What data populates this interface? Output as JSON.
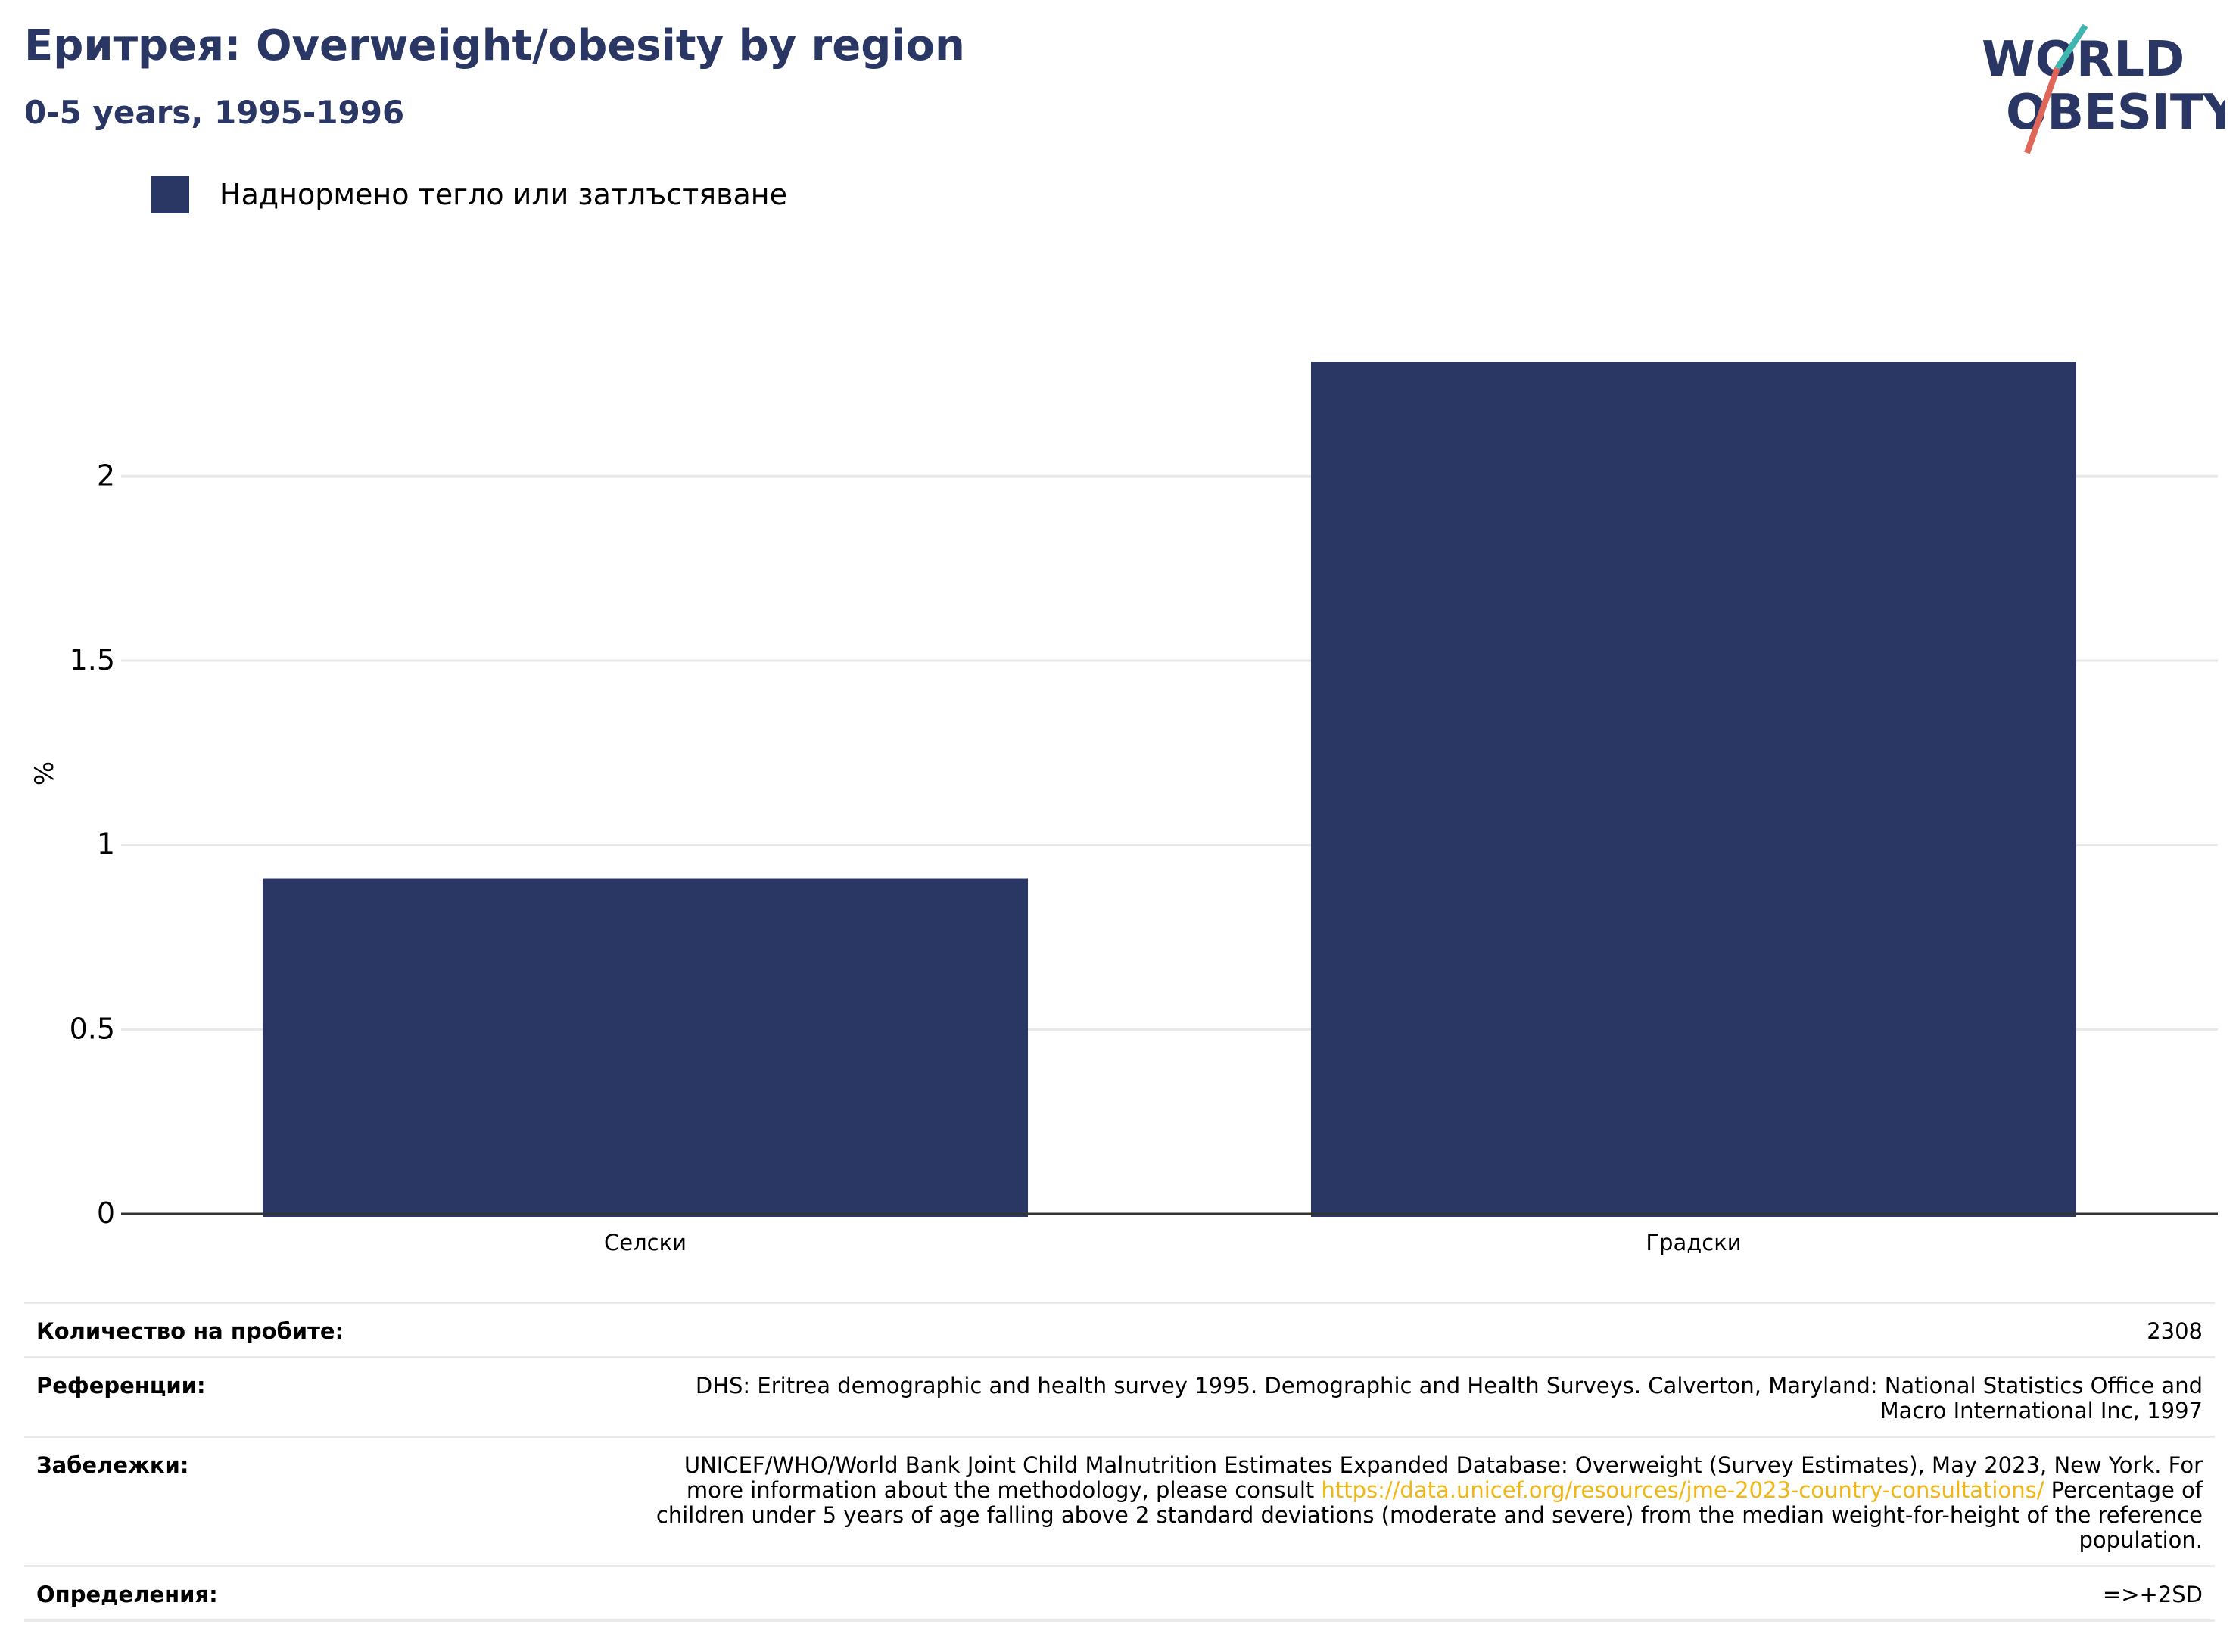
{
  "header": {
    "title": "Еритрея: Overweight/obesity by region",
    "subtitle": "0-5 years, 1995-1996"
  },
  "logo": {
    "line1": "WORLD",
    "line2": "OBESITY",
    "colors": {
      "text": "#2a3764",
      "teal": "#3fb6b0",
      "coral": "#e0665a"
    }
  },
  "legend": {
    "label": "Наднормено тегло или затлъстяване",
    "color": "#2a3764"
  },
  "chart_data": {
    "type": "bar",
    "categories": [
      "Селски",
      "Градски"
    ],
    "series": [
      {
        "name": "Наднормено тегло или затлъстяване",
        "values": [
          0.91,
          2.31
        ],
        "color": "#2a3764"
      }
    ],
    "ylabel": "%",
    "xlabel": "",
    "ylim": [
      0,
      2.45
    ],
    "yticks": [
      0,
      0.5,
      1,
      1.5,
      2
    ],
    "ytick_labels": [
      "0",
      "0.5",
      "1",
      "1.5",
      "2"
    ],
    "grid": true,
    "legend_position": "top-left"
  },
  "meta": {
    "sample_size": {
      "label": "Количество на пробите:",
      "value": "2308"
    },
    "references": {
      "label": "Референции:",
      "value_line1": "DHS: Eritrea demographic and health survey 1995. Demographic and Health Surveys. Calverton, Maryland: National Statistics Office and",
      "value_line2": "Macro International Inc, 1997"
    },
    "notes": {
      "label": "Забележки:",
      "line1": "UNICEF/WHO/World Bank Joint Child Malnutrition Estimates Expanded Database: Overweight (Survey Estimates), May 2023, New York. For",
      "line2_pre": "more information about the methodology, please consult ",
      "link": "https://data.unicef.org/resources/jme-2023-country-consultations/",
      "line2_post": " Percentage of",
      "line3": "children under 5 years of age falling above 2 standard deviations (moderate and severe) from the median weight-for-height of the reference",
      "line4": "population."
    },
    "definitions": {
      "label": "Определения:",
      "value": "=>+2SD"
    }
  }
}
